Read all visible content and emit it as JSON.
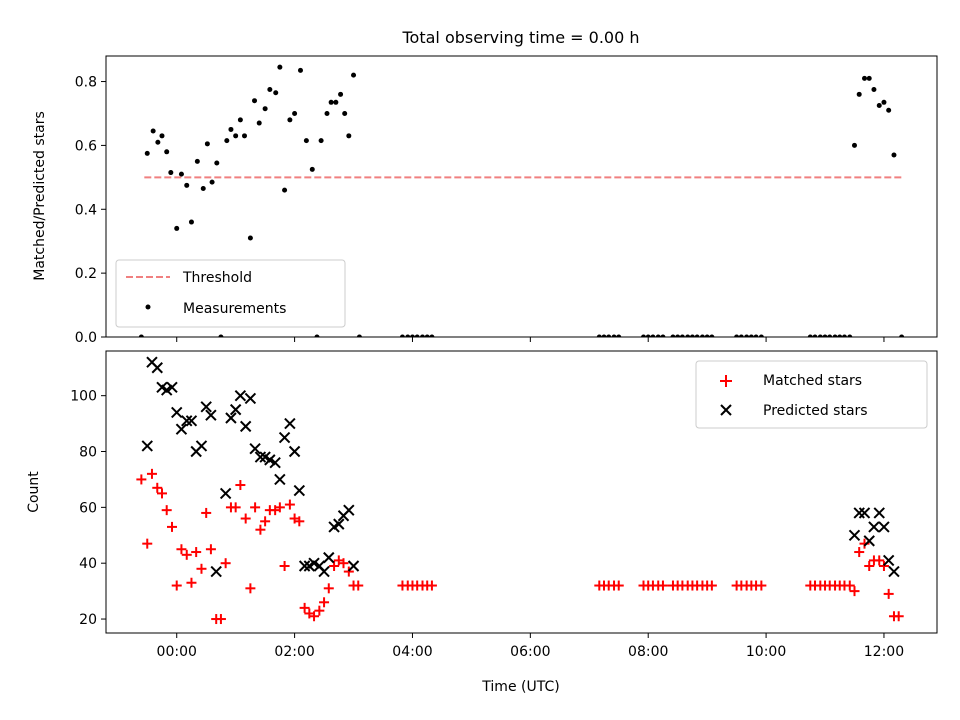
{
  "chart_data": [
    {
      "type": "scatter",
      "title": "Total observing time = 0.00 h",
      "xlabel": "",
      "ylabel": "Matched/Predicted stars",
      "xlim": [
        -1.2,
        12.9
      ],
      "ylim": [
        0,
        0.88
      ],
      "xticks": [
        0,
        2,
        4,
        6,
        8,
        10,
        12
      ],
      "yticks": [
        0.0,
        0.2,
        0.4,
        0.6,
        0.8
      ],
      "ytick_labels": [
        "0.0",
        "0.2",
        "0.4",
        "0.6",
        "0.8"
      ],
      "grid": false,
      "legend_position": "bottom-left",
      "threshold": {
        "name": "Threshold",
        "y": 0.5,
        "x_range": [
          -0.55,
          12.3
        ],
        "color": "#f08080"
      },
      "series": [
        {
          "name": "Measurements",
          "color": "#000000",
          "points": [
            [
              -0.6,
              0.0
            ],
            [
              -0.5,
              0.575
            ],
            [
              -0.4,
              0.645
            ],
            [
              -0.32,
              0.61
            ],
            [
              -0.25,
              0.63
            ],
            [
              -0.17,
              0.58
            ],
            [
              -0.1,
              0.515
            ],
            [
              0.0,
              0.34
            ],
            [
              0.08,
              0.51
            ],
            [
              0.17,
              0.475
            ],
            [
              0.25,
              0.36
            ],
            [
              0.35,
              0.55
            ],
            [
              0.45,
              0.465
            ],
            [
              0.52,
              0.605
            ],
            [
              0.6,
              0.485
            ],
            [
              0.68,
              0.545
            ],
            [
              0.75,
              0.0
            ],
            [
              0.85,
              0.615
            ],
            [
              0.92,
              0.65
            ],
            [
              1.0,
              0.63
            ],
            [
              1.08,
              0.68
            ],
            [
              1.15,
              0.63
            ],
            [
              1.25,
              0.31
            ],
            [
              1.32,
              0.74
            ],
            [
              1.4,
              0.67
            ],
            [
              1.5,
              0.715
            ],
            [
              1.58,
              0.775
            ],
            [
              1.68,
              0.765
            ],
            [
              1.75,
              0.845
            ],
            [
              1.83,
              0.46
            ],
            [
              1.92,
              0.68
            ],
            [
              2.0,
              0.7
            ],
            [
              2.1,
              0.835
            ],
            [
              2.2,
              0.615
            ],
            [
              2.3,
              0.525
            ],
            [
              2.38,
              0.0
            ],
            [
              2.45,
              0.615
            ],
            [
              2.55,
              0.7
            ],
            [
              2.62,
              0.735
            ],
            [
              2.7,
              0.735
            ],
            [
              2.78,
              0.76
            ],
            [
              2.85,
              0.7
            ],
            [
              2.92,
              0.63
            ],
            [
              3.0,
              0.82
            ],
            [
              3.1,
              0.0
            ],
            [
              3.83,
              0.0
            ],
            [
              3.92,
              0.0
            ],
            [
              4.0,
              0.0
            ],
            [
              4.08,
              0.0
            ],
            [
              4.17,
              0.0
            ],
            [
              4.25,
              0.0
            ],
            [
              4.33,
              0.0
            ],
            [
              7.17,
              0.0
            ],
            [
              7.25,
              0.0
            ],
            [
              7.33,
              0.0
            ],
            [
              7.42,
              0.0
            ],
            [
              7.5,
              0.0
            ],
            [
              7.92,
              0.0
            ],
            [
              8.0,
              0.0
            ],
            [
              8.08,
              0.0
            ],
            [
              8.17,
              0.0
            ],
            [
              8.25,
              0.0
            ],
            [
              8.42,
              0.0
            ],
            [
              8.5,
              0.0
            ],
            [
              8.58,
              0.0
            ],
            [
              8.67,
              0.0
            ],
            [
              8.75,
              0.0
            ],
            [
              8.83,
              0.0
            ],
            [
              8.92,
              0.0
            ],
            [
              9.0,
              0.0
            ],
            [
              9.08,
              0.0
            ],
            [
              9.5,
              0.0
            ],
            [
              9.58,
              0.0
            ],
            [
              9.67,
              0.0
            ],
            [
              9.75,
              0.0
            ],
            [
              9.83,
              0.0
            ],
            [
              9.92,
              0.0
            ],
            [
              10.75,
              0.0
            ],
            [
              10.83,
              0.0
            ],
            [
              10.92,
              0.0
            ],
            [
              11.0,
              0.0
            ],
            [
              11.08,
              0.0
            ],
            [
              11.17,
              0.0
            ],
            [
              11.25,
              0.0
            ],
            [
              11.33,
              0.0
            ],
            [
              11.42,
              0.0
            ],
            [
              11.5,
              0.6
            ],
            [
              11.58,
              0.76
            ],
            [
              11.67,
              0.81
            ],
            [
              11.75,
              0.81
            ],
            [
              11.83,
              0.775
            ],
            [
              11.92,
              0.725
            ],
            [
              12.0,
              0.735
            ],
            [
              12.08,
              0.71
            ],
            [
              12.17,
              0.57
            ],
            [
              12.3,
              0.0
            ]
          ]
        }
      ]
    },
    {
      "type": "scatter",
      "title": "",
      "xlabel": "Time (UTC)",
      "ylabel": "Count",
      "xlim": [
        -1.2,
        12.9
      ],
      "ylim": [
        15,
        116
      ],
      "xticks": [
        0,
        2,
        4,
        6,
        8,
        10,
        12
      ],
      "xtick_labels": [
        "00:00",
        "02:00",
        "04:00",
        "06:00",
        "08:00",
        "10:00",
        "12:00"
      ],
      "yticks": [
        20,
        40,
        60,
        80,
        100
      ],
      "ytick_labels": [
        "20",
        "40",
        "60",
        "80",
        "100"
      ],
      "grid": false,
      "legend_position": "top-right",
      "series": [
        {
          "name": "Matched stars",
          "marker": "plus",
          "color": "#ff0000",
          "points": [
            [
              -0.6,
              70
            ],
            [
              -0.5,
              47
            ],
            [
              -0.42,
              72
            ],
            [
              -0.33,
              67
            ],
            [
              -0.25,
              65
            ],
            [
              -0.17,
              59
            ],
            [
              -0.08,
              53
            ],
            [
              0.0,
              32
            ],
            [
              0.08,
              45
            ],
            [
              0.17,
              43
            ],
            [
              0.25,
              33
            ],
            [
              0.33,
              44
            ],
            [
              0.42,
              38
            ],
            [
              0.5,
              58
            ],
            [
              0.58,
              45
            ],
            [
              0.67,
              20
            ],
            [
              0.75,
              20
            ],
            [
              0.83,
              40
            ],
            [
              0.92,
              60
            ],
            [
              1.0,
              60
            ],
            [
              1.08,
              68
            ],
            [
              1.17,
              56
            ],
            [
              1.25,
              31
            ],
            [
              1.33,
              60
            ],
            [
              1.42,
              52
            ],
            [
              1.5,
              55
            ],
            [
              1.58,
              59
            ],
            [
              1.67,
              59
            ],
            [
              1.75,
              60
            ],
            [
              1.83,
              39
            ],
            [
              1.92,
              61
            ],
            [
              2.0,
              56
            ],
            [
              2.08,
              55
            ],
            [
              2.17,
              24
            ],
            [
              2.25,
              22
            ],
            [
              2.33,
              21
            ],
            [
              2.42,
              23
            ],
            [
              2.5,
              26
            ],
            [
              2.58,
              31
            ],
            [
              2.67,
              39
            ],
            [
              2.75,
              41
            ],
            [
              2.83,
              40
            ],
            [
              2.92,
              37
            ],
            [
              3.0,
              32
            ],
            [
              3.08,
              32
            ],
            [
              3.83,
              32
            ],
            [
              3.92,
              32
            ],
            [
              4.0,
              32
            ],
            [
              4.08,
              32
            ],
            [
              4.17,
              32
            ],
            [
              4.25,
              32
            ],
            [
              4.33,
              32
            ],
            [
              7.17,
              32
            ],
            [
              7.25,
              32
            ],
            [
              7.33,
              32
            ],
            [
              7.42,
              32
            ],
            [
              7.5,
              32
            ],
            [
              7.92,
              32
            ],
            [
              8.0,
              32
            ],
            [
              8.08,
              32
            ],
            [
              8.17,
              32
            ],
            [
              8.25,
              32
            ],
            [
              8.42,
              32
            ],
            [
              8.5,
              32
            ],
            [
              8.58,
              32
            ],
            [
              8.67,
              32
            ],
            [
              8.75,
              32
            ],
            [
              8.83,
              32
            ],
            [
              8.92,
              32
            ],
            [
              9.0,
              32
            ],
            [
              9.08,
              32
            ],
            [
              9.5,
              32
            ],
            [
              9.58,
              32
            ],
            [
              9.67,
              32
            ],
            [
              9.75,
              32
            ],
            [
              9.83,
              32
            ],
            [
              9.92,
              32
            ],
            [
              10.75,
              32
            ],
            [
              10.83,
              32
            ],
            [
              10.92,
              32
            ],
            [
              11.0,
              32
            ],
            [
              11.08,
              32
            ],
            [
              11.17,
              32
            ],
            [
              11.25,
              32
            ],
            [
              11.33,
              32
            ],
            [
              11.42,
              32
            ],
            [
              11.5,
              30
            ],
            [
              11.58,
              44
            ],
            [
              11.67,
              47
            ],
            [
              11.75,
              39
            ],
            [
              11.83,
              41
            ],
            [
              11.92,
              41
            ],
            [
              12.0,
              39
            ],
            [
              12.08,
              29
            ],
            [
              12.17,
              21
            ],
            [
              12.25,
              21
            ]
          ]
        },
        {
          "name": "Predicted stars",
          "marker": "x",
          "color": "#000000",
          "points": [
            [
              -0.5,
              82
            ],
            [
              -0.42,
              112
            ],
            [
              -0.33,
              110
            ],
            [
              -0.25,
              103
            ],
            [
              -0.17,
              102
            ],
            [
              -0.08,
              103
            ],
            [
              0.0,
              94
            ],
            [
              0.08,
              88
            ],
            [
              0.17,
              91
            ],
            [
              0.25,
              91
            ],
            [
              0.33,
              80
            ],
            [
              0.42,
              82
            ],
            [
              0.5,
              96
            ],
            [
              0.58,
              93
            ],
            [
              0.67,
              37
            ],
            [
              0.83,
              65
            ],
            [
              0.92,
              92
            ],
            [
              1.0,
              95
            ],
            [
              1.08,
              100
            ],
            [
              1.17,
              89
            ],
            [
              1.25,
              99
            ],
            [
              1.33,
              81
            ],
            [
              1.42,
              78
            ],
            [
              1.5,
              78
            ],
            [
              1.58,
              77
            ],
            [
              1.67,
              76
            ],
            [
              1.75,
              70
            ],
            [
              1.83,
              85
            ],
            [
              1.92,
              90
            ],
            [
              2.0,
              80
            ],
            [
              2.08,
              66
            ],
            [
              2.17,
              39
            ],
            [
              2.25,
              39
            ],
            [
              2.33,
              40
            ],
            [
              2.42,
              39
            ],
            [
              2.5,
              37
            ],
            [
              2.58,
              42
            ],
            [
              2.67,
              53
            ],
            [
              2.75,
              54
            ],
            [
              2.83,
              57
            ],
            [
              2.92,
              59
            ],
            [
              3.0,
              39
            ],
            [
              11.5,
              50
            ],
            [
              11.58,
              58
            ],
            [
              11.67,
              58
            ],
            [
              11.75,
              48
            ],
            [
              11.83,
              53
            ],
            [
              11.92,
              58
            ],
            [
              12.0,
              53
            ],
            [
              12.08,
              41
            ],
            [
              12.17,
              37
            ]
          ]
        }
      ]
    }
  ]
}
